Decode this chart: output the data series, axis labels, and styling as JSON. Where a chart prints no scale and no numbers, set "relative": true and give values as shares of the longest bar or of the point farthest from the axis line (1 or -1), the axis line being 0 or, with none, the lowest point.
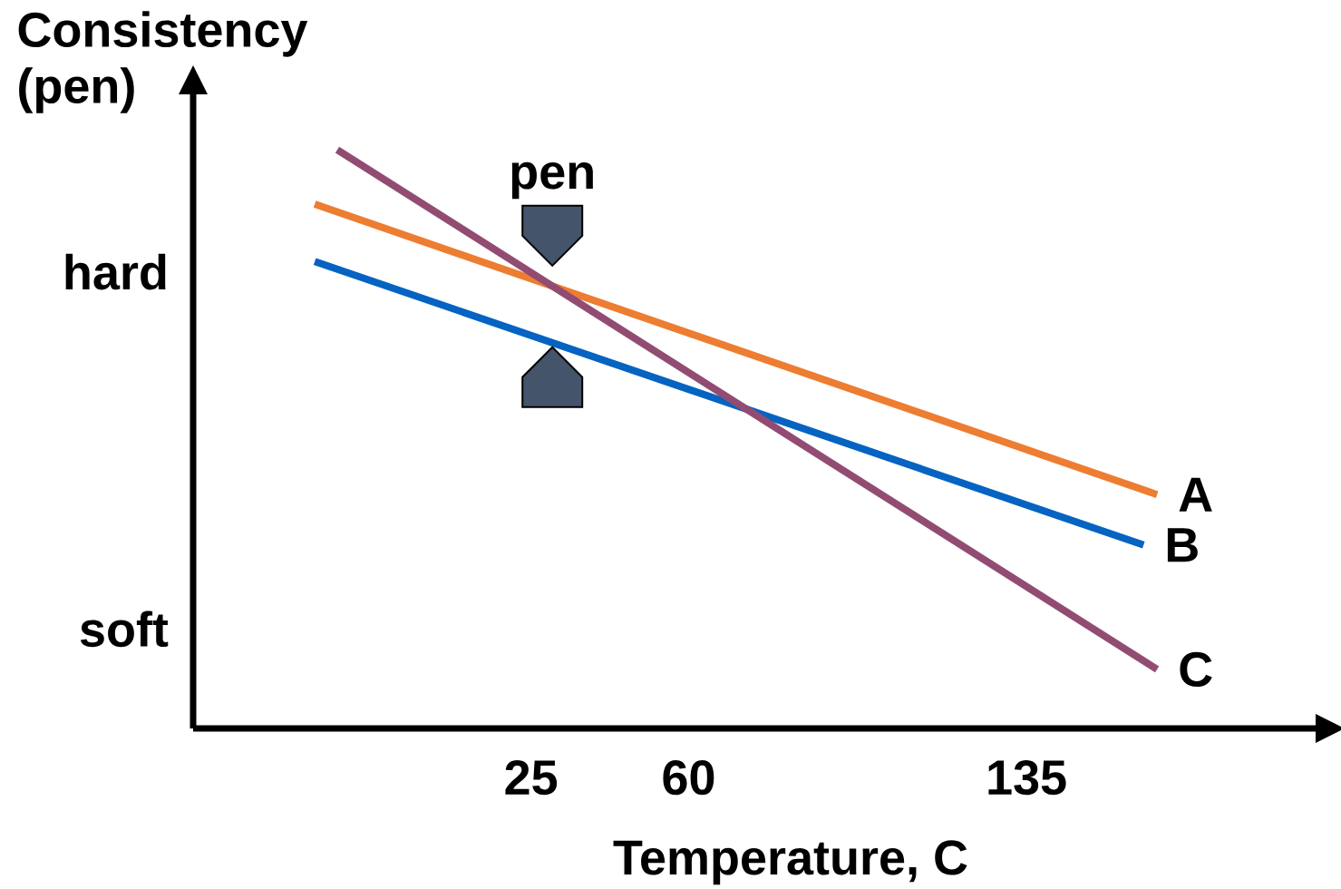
{
  "chart_data": {
    "type": "line",
    "relative": true,
    "xlabel": "Temperature, C",
    "ylabel": "Consistency (pen)",
    "xlim": [
      -50,
      200
    ],
    "xticks": [
      25,
      60,
      135
    ],
    "series": [
      {
        "name": "A",
        "color": "#ED7D31",
        "x": [
          -23,
          164
        ],
        "values": [
          0.906,
          0.404
        ]
      },
      {
        "name": "B",
        "color": "#0563C1",
        "x": [
          -23,
          161
        ],
        "values": [
          0.807,
          0.317
        ]
      },
      {
        "name": "C",
        "color": "#924C72",
        "x": [
          -18,
          164
        ],
        "values": [
          1.0,
          0.102
        ]
      }
    ],
    "annotations": [
      "hard",
      "soft",
      "pen"
    ]
  }
}
